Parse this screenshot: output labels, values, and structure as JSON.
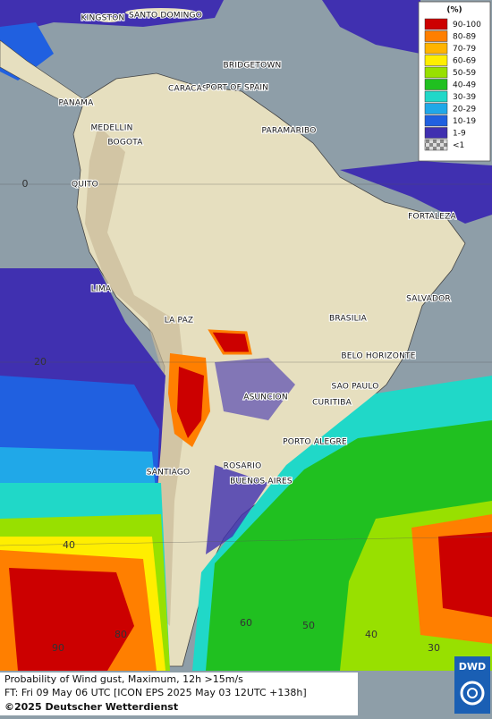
{
  "map": {
    "legend": {
      "title": "(%)",
      "items": [
        {
          "label": "90-100",
          "color": "#cc0000"
        },
        {
          "label": "80-89",
          "color": "#ff7f00"
        },
        {
          "label": "70-79",
          "color": "#ffb400"
        },
        {
          "label": "60-69",
          "color": "#ffee00"
        },
        {
          "label": "50-59",
          "color": "#98e000"
        },
        {
          "label": "40-49",
          "color": "#20c020"
        },
        {
          "label": "30-39",
          "color": "#20d8c8"
        },
        {
          "label": "20-29",
          "color": "#20a8e8"
        },
        {
          "label": "10-19",
          "color": "#2060e0"
        },
        {
          "label": "1-9",
          "color": "#4030b0"
        },
        {
          "label": "<1",
          "color": "#b0b0b0"
        }
      ]
    },
    "cities": [
      "KINGSTON",
      "SANTO DOMINGO",
      "BRIDGETOWN",
      "CARACAS",
      "PORT OF SPAIN",
      "PANAMA",
      "MEDELLIN",
      "BOGOTA",
      "PARAMARIBO",
      "QUITO",
      "FORTALEZA",
      "LIMA",
      "SALVADOR",
      "BRASILIA",
      "LA PAZ",
      "BELO HORIZONTE",
      "SAO PAULO",
      "ASUNCION",
      "CURITIBA",
      "PORTO ALEGRE",
      "ROSARIO",
      "SANTIAGO",
      "BUENOS AIRES"
    ],
    "grid_labels": [
      "0",
      "20",
      "40",
      "80",
      "90",
      "60",
      "50",
      "40",
      "30"
    ],
    "footer": {
      "line1": "Probability of Wind gust, Maximum, 12h >15m/s",
      "line2": "FT: Fri 09 May 06 UTC [ICON EPS 2025 May 03 12UTC +138h]",
      "copyright": "©2025 Deutscher Wetterdienst"
    },
    "logo": "DWD"
  }
}
